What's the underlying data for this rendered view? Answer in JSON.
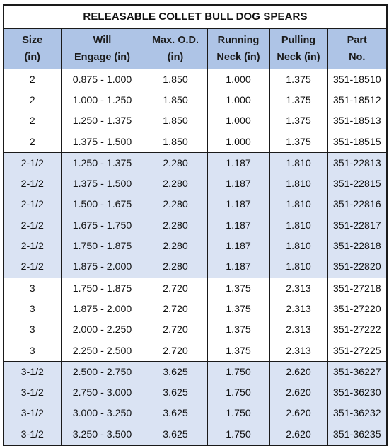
{
  "title": "RELEASABLE COLLET BULL DOG SPEARS",
  "columns": [
    {
      "line1": "Size",
      "line2": "(in)"
    },
    {
      "line1": "Will",
      "line2": "Engage (in)"
    },
    {
      "line1": "Max. O.D.",
      "line2": "(in)"
    },
    {
      "line1": "Running",
      "line2": "Neck (in)"
    },
    {
      "line1": "Pulling",
      "line2": "Neck (in)"
    },
    {
      "line1": "Part",
      "line2": "No."
    }
  ],
  "rows": [
    [
      "2",
      "0.875 - 1.000",
      "1.850",
      "1.000",
      "1.375",
      "351-18510"
    ],
    [
      "2",
      "1.000 - 1.250",
      "1.850",
      "1.000",
      "1.375",
      "351-18512"
    ],
    [
      "2",
      "1.250 - 1.375",
      "1.850",
      "1.000",
      "1.375",
      "351-18513"
    ],
    [
      "2",
      "1.375 - 1.500",
      "1.850",
      "1.000",
      "1.375",
      "351-18515"
    ],
    [
      "2-1/2",
      "1.250 - 1.375",
      "2.280",
      "1.187",
      "1.810",
      "351-22813"
    ],
    [
      "2-1/2",
      "1.375 - 1.500",
      "2.280",
      "1.187",
      "1.810",
      "351-22815"
    ],
    [
      "2-1/2",
      "1.500 - 1.675",
      "2.280",
      "1.187",
      "1.810",
      "351-22816"
    ],
    [
      "2-1/2",
      "1.675 - 1.750",
      "2.280",
      "1.187",
      "1.810",
      "351-22817"
    ],
    [
      "2-1/2",
      "1.750 - 1.875",
      "2.280",
      "1.187",
      "1.810",
      "351-22818"
    ],
    [
      "2-1/2",
      "1.875 - 2.000",
      "2.280",
      "1.187",
      "1.810",
      "351-22820"
    ],
    [
      "3",
      "1.750 - 1.875",
      "2.720",
      "1.375",
      "2.313",
      "351-27218"
    ],
    [
      "3",
      "1.875 - 2.000",
      "2.720",
      "1.375",
      "2.313",
      "351-27220"
    ],
    [
      "3",
      "2.000 - 2.250",
      "2.720",
      "1.375",
      "2.313",
      "351-27222"
    ],
    [
      "3",
      "2.250 - 2.500",
      "2.720",
      "1.375",
      "2.313",
      "351-27225"
    ],
    [
      "3-1/2",
      "2.500 - 2.750",
      "3.625",
      "1.750",
      "2.620",
      "351-36227"
    ],
    [
      "3-1/2",
      "2.750 - 3.000",
      "3.625",
      "1.750",
      "2.620",
      "351-36230"
    ],
    [
      "3-1/2",
      "3.000 - 3.250",
      "3.625",
      "1.750",
      "2.620",
      "351-36232"
    ],
    [
      "3-1/2",
      "3.250 - 3.500",
      "3.625",
      "1.750",
      "2.620",
      "351-36235"
    ]
  ],
  "colors": {
    "header_bg": "#aec4e6",
    "shaded_group_bg": "#dae3f3",
    "plain_group_bg": "#ffffff",
    "border": "#1a1a1a"
  }
}
